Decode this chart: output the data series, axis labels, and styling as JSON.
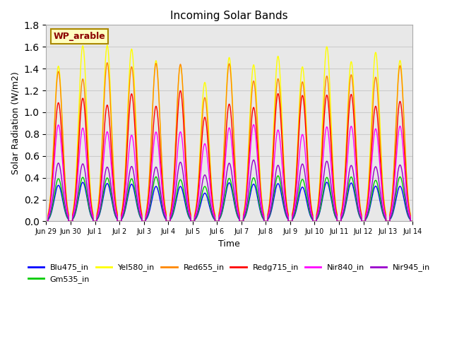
{
  "title": "Incoming Solar Bands",
  "xlabel": "Time",
  "ylabel": "Solar Radiation (W/m2)",
  "ylim": [
    0,
    1.8
  ],
  "annotation_text": "WP_arable",
  "annotation_color": "#8B0000",
  "annotation_bg": "#FFFFC0",
  "annotation_edge": "#AA8800",
  "grid_color": "#CCCCCC",
  "bg_color": "#E8E8E8",
  "tick_labels": [
    "Jun 29",
    "Jun 30",
    "Jul 1",
    "Jul 2",
    "Jul 3",
    "Jul 4",
    "Jul 5",
    "Jul 6",
    "Jul 7",
    "Jul 8",
    "Jul 9",
    "Jul 10",
    "Jul 11",
    "Jul 12",
    "Jul 13",
    "Jul 14"
  ],
  "band_scales": {
    "Blu475_in": 0.36,
    "Gm535_in": 0.43,
    "Yel580_in": 1.62,
    "Red655_in": 1.46,
    "Redg715_in": 1.2,
    "Nir840_in": 0.9,
    "Nir945_in": 0.57
  },
  "colors": {
    "Blu475_in": "#0000FF",
    "Gm535_in": "#00CC00",
    "Yel580_in": "#FFFF00",
    "Red655_in": "#FF8800",
    "Redg715_in": "#FF0000",
    "Nir840_in": "#FF00FF",
    "Nir945_in": "#9900CC"
  }
}
